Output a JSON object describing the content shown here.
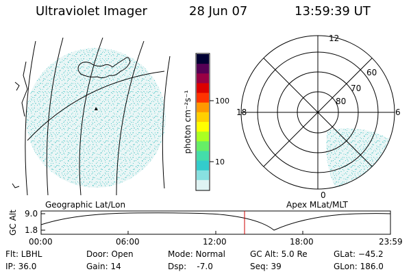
{
  "header": {
    "instrument": "Ultraviolet Imager",
    "date": "28 Jun 07",
    "time": "13:59:39 UT"
  },
  "colorbar": {
    "unit_label": "photon cm⁻²s⁻¹",
    "ticks": [
      "100",
      "10"
    ],
    "colors": [
      "#dff3f3",
      "#88e0e0",
      "#33cccc",
      "#44ddaa",
      "#66ee66",
      "#aaff22",
      "#ffff00",
      "#ffd000",
      "#ff9900",
      "#ff3300",
      "#dd0000",
      "#990044",
      "#550055",
      "#000033"
    ]
  },
  "polar_plot": {
    "mlt_labels": {
      "top": "12",
      "left": "18",
      "right": "6",
      "bottom": "0"
    },
    "mlat_labels": [
      "60",
      "70",
      "80"
    ]
  },
  "projections": {
    "left": "Geographic Lat/Lon",
    "right": "Apex MLat/MLT"
  },
  "altitude_plot": {
    "ylabel": "GC Alt",
    "y_ticks": [
      "9.0",
      "1.8"
    ],
    "x_ticks": [
      "00:00",
      "06:00",
      "12:00",
      "18:00",
      "23:59"
    ],
    "marker_time": "13:59:39"
  },
  "info": {
    "filter": "Flt: LBHL",
    "ip": "IP: 36.0",
    "door": "Door: Open",
    "gain": "Gain: 14",
    "mode": "Mode: Normal",
    "dsp": "Dsp:    -7.0",
    "gc_alt": "GC Alt: 5.0 Re",
    "seq": "Seq: 39",
    "glat": "GLat: −45.2",
    "glon": "GLon: 186.0"
  }
}
